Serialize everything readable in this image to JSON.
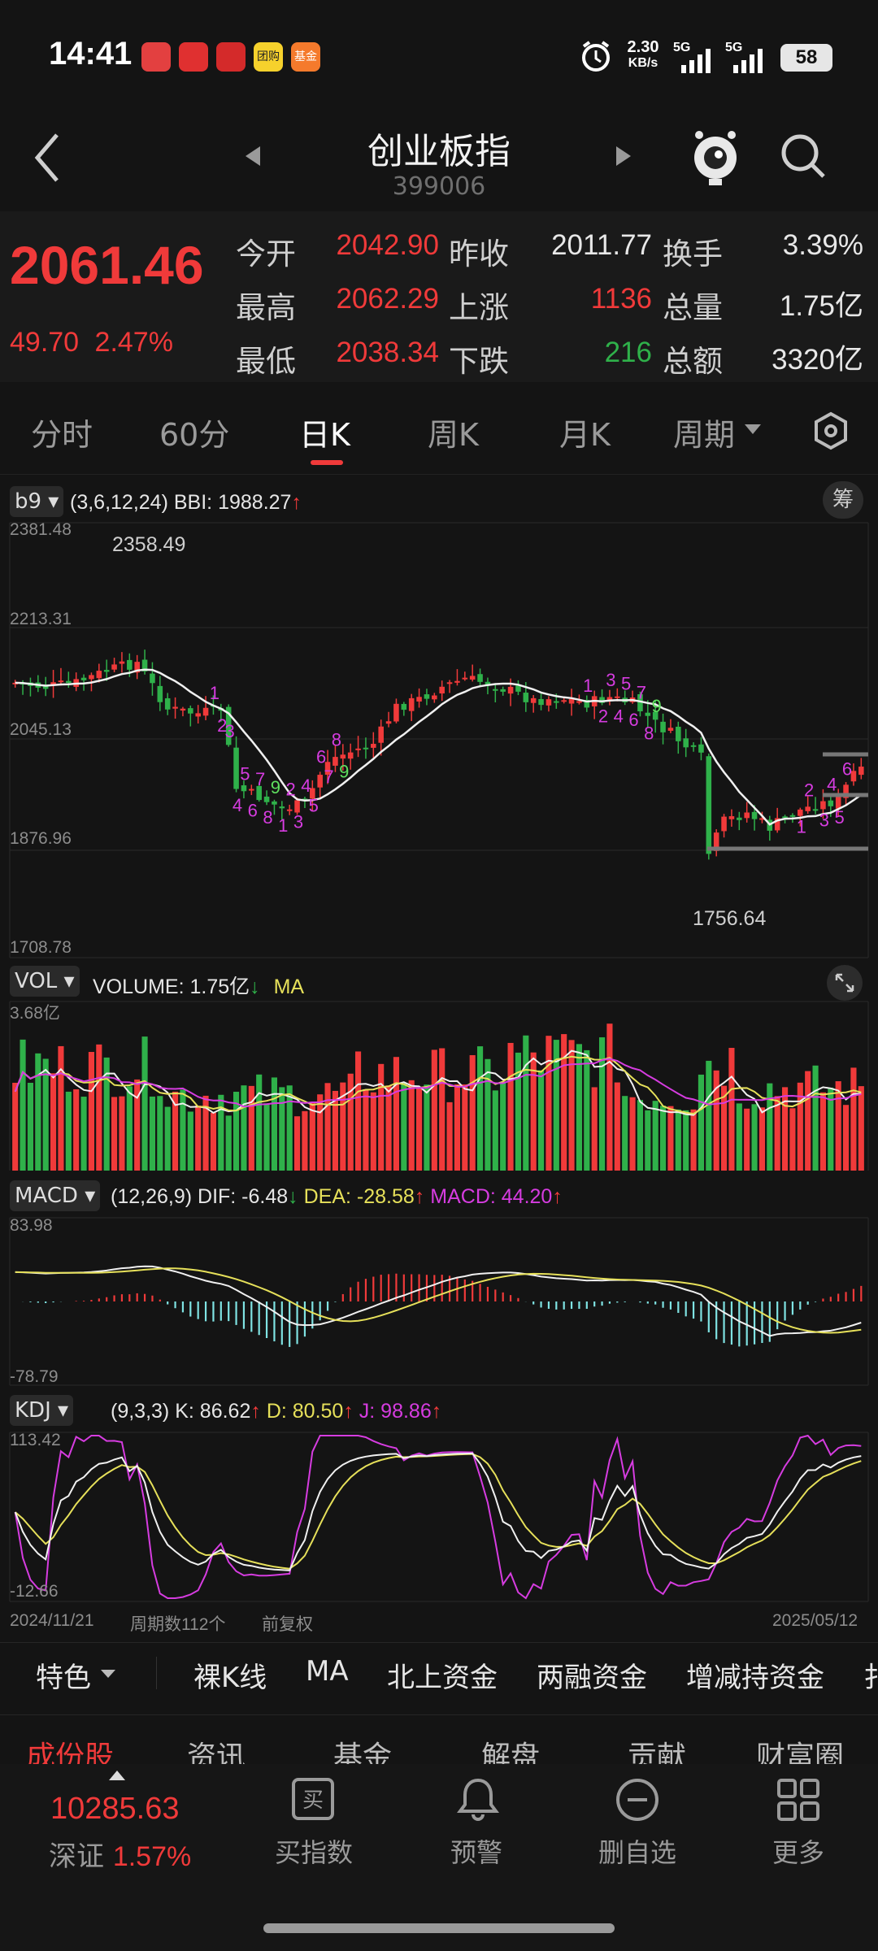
{
  "status_bar": {
    "time": "14:41",
    "net_speed_top": "2.30",
    "net_speed_bottom": "KB/s",
    "sig1": "5G",
    "sig2": "5G",
    "battery": "58",
    "app_icon_fund": "基金",
    "app_icon_game": "团购"
  },
  "header": {
    "title": "创业板指",
    "code": "399006",
    "icons": [
      "back-arrow-icon",
      "prev-arrow-icon",
      "next-arrow-icon",
      "mascot-icon",
      "search-icon"
    ]
  },
  "quote": {
    "price": "2061.46",
    "change": "49.70",
    "change_pct": "2.47%",
    "rows": [
      {
        "l1": "今开",
        "v1": "2042.90",
        "l2": "昨收",
        "v2": "2011.77",
        "l3": "换手",
        "v3": "3.39%"
      },
      {
        "l1": "最高",
        "v1": "2062.29",
        "l2": "上涨",
        "v2": "1136",
        "l3": "总量",
        "v3": "1.75亿"
      },
      {
        "l1": "最低",
        "v1": "2038.34",
        "l2": "下跌",
        "v2": "216",
        "l3": "总额",
        "v3": "3320亿"
      }
    ]
  },
  "tabs": [
    "分时",
    "60分",
    "日K",
    "周K",
    "月K",
    "周期"
  ],
  "active_tab": "日K",
  "main_chart": {
    "indicator": "b9",
    "params": "(3,6,12,24)",
    "bbi_label": "BBI:",
    "bbi_value": "1988.27",
    "chip_button": "筹",
    "y_ticks": [
      "2381.48",
      "2213.31",
      "2045.13",
      "1876.96",
      "1708.78"
    ],
    "high_label": "2358.49",
    "low_label": "1756.64"
  },
  "vol_panel": {
    "indicator": "VOL",
    "label": "VOLUME: 1.75亿",
    "ma_label": "MA",
    "y_top": "3.68亿"
  },
  "macd_panel": {
    "indicator": "MACD",
    "params": "(12,26,9)",
    "dif": "DIF: -6.48",
    "dea": "DEA: -28.58",
    "macd": "MACD: 44.20",
    "y_top": "83.98",
    "y_bottom": "-78.79"
  },
  "kdj_panel": {
    "indicator": "KDJ",
    "params": "(9,3,3)",
    "k": "K: 86.62",
    "d": "D: 80.50",
    "j": "J: 98.86",
    "y_top": "113.42",
    "y_bottom": "-12.66"
  },
  "footer_axis": {
    "start_date": "2024/11/21",
    "period_count": "周期数112个",
    "adjust": "前复权",
    "end_date": "2025/05/12"
  },
  "feature_bar": [
    "特色",
    "裸K线",
    "MA",
    "北上资金",
    "两融资金",
    "增减持资金",
    "扌"
  ],
  "sub_tabs": [
    "成份股",
    "资讯",
    "基金",
    "解盘",
    "贡献",
    "财富圈"
  ],
  "bottom_nav": {
    "index_value": "10285.63",
    "index_name": "深证",
    "index_pct": "1.57%",
    "items": [
      {
        "label": "买指数",
        "icon": "buy-index-icon"
      },
      {
        "label": "预警",
        "icon": "bell-icon"
      },
      {
        "label": "删自选",
        "icon": "remove-watchlist-icon"
      },
      {
        "label": "更多",
        "icon": "grid-more-icon"
      }
    ]
  },
  "colors": {
    "up": "#f03a3a",
    "down": "#2fb14a",
    "bg": "#141414",
    "ma": "#ffffff",
    "yellow": "#e6e05a",
    "magenta": "#d63ce0",
    "cyan": "#7fe3e3"
  }
}
